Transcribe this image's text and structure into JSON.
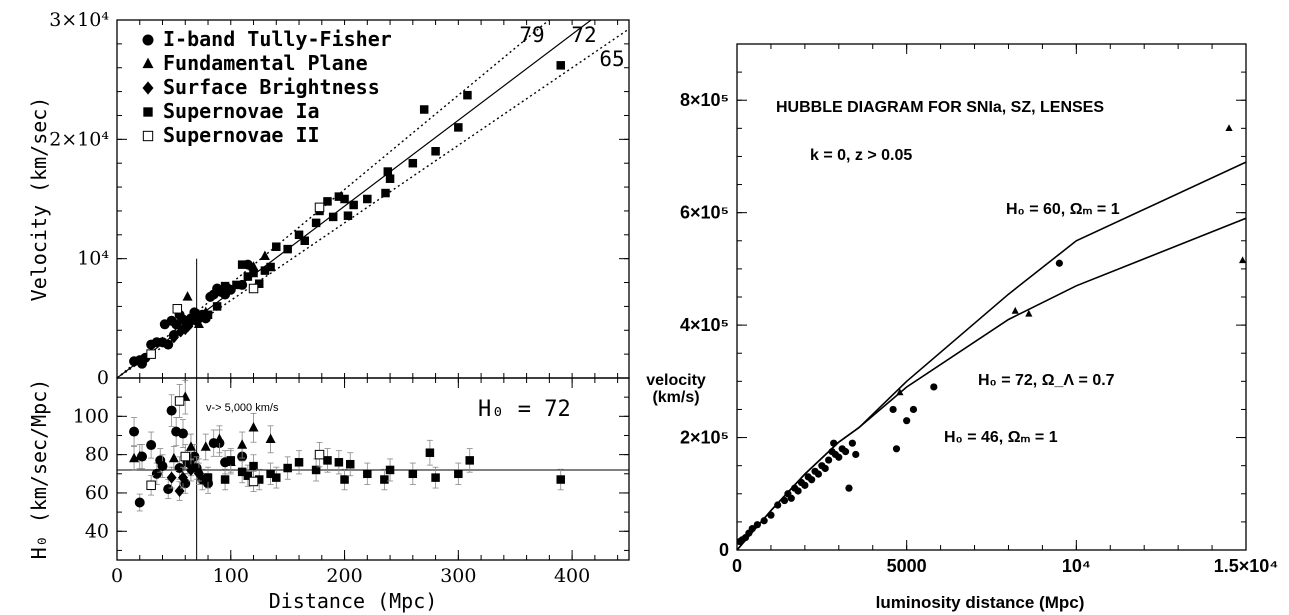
{
  "chart_data": [
    {
      "type": "scatter",
      "panel": "top-left",
      "xlabel": "",
      "ylabel": "Velocity (km/sec)",
      "xlim": [
        0,
        450
      ],
      "ylim": [
        0,
        30000
      ],
      "xticks": [],
      "yticks": [
        {
          "v": 0,
          "label": "0"
        },
        {
          "v": 10000,
          "label": "10⁴"
        },
        {
          "v": 20000,
          "label": "2×10⁴"
        },
        {
          "v": 30000,
          "label": "3×10⁴"
        }
      ],
      "legend": [
        {
          "marker": "circle",
          "label": "I-band Tully-Fisher"
        },
        {
          "marker": "triangle",
          "label": "Fundamental Plane"
        },
        {
          "marker": "diamond",
          "label": "Surface Brightness"
        },
        {
          "marker": "square",
          "label": "Supernovae Ia"
        },
        {
          "marker": "open-square",
          "label": "Supernovae II"
        }
      ],
      "lines": [
        {
          "label": "79",
          "slope": 79,
          "style": "dotted"
        },
        {
          "label": "72",
          "slope": 72,
          "style": "solid"
        },
        {
          "label": "65",
          "slope": 65,
          "style": "dotted"
        }
      ],
      "vline_x": 70,
      "series": [
        {
          "marker": "circle",
          "points": [
            [
              15,
              1400
            ],
            [
              20,
              1500
            ],
            [
              22,
              1200
            ],
            [
              25,
              1700
            ],
            [
              30,
              2800
            ],
            [
              35,
              3000
            ],
            [
              40,
              3000
            ],
            [
              42,
              4500
            ],
            [
              45,
              2800
            ],
            [
              48,
              4800
            ],
            [
              50,
              3600
            ],
            [
              52,
              4500
            ],
            [
              55,
              5300
            ],
            [
              58,
              4900
            ],
            [
              60,
              4200
            ],
            [
              62,
              4400
            ],
            [
              65,
              5000
            ],
            [
              68,
              5500
            ],
            [
              70,
              4800
            ],
            [
              72,
              5000
            ],
            [
              75,
              5300
            ],
            [
              78,
              5000
            ],
            [
              82,
              6800
            ],
            [
              85,
              7000
            ],
            [
              88,
              7500
            ],
            [
              92,
              7200
            ],
            [
              95,
              7000
            ],
            [
              100,
              7400
            ],
            [
              110,
              7800
            ],
            [
              115,
              9500
            ]
          ]
        },
        {
          "marker": "triangle",
          "points": [
            [
              40,
              3000
            ],
            [
              55,
              4800
            ],
            [
              62,
              6800
            ],
            [
              68,
              5000
            ],
            [
              72,
              4500
            ],
            [
              78,
              5500
            ],
            [
              120,
              9300
            ],
            [
              130,
              10200
            ]
          ]
        },
        {
          "marker": "diamond",
          "points": [
            [
              50,
              3400
            ],
            [
              56,
              3900
            ],
            [
              60,
              4100
            ],
            [
              65,
              4700
            ],
            [
              70,
              5100
            ]
          ]
        },
        {
          "marker": "square",
          "points": [
            [
              80,
              5300
            ],
            [
              88,
              6000
            ],
            [
              95,
              7700
            ],
            [
              105,
              7800
            ],
            [
              110,
              9500
            ],
            [
              115,
              8500
            ],
            [
              120,
              8800
            ],
            [
              125,
              7900
            ],
            [
              130,
              9000
            ],
            [
              135,
              9300
            ],
            [
              140,
              11000
            ],
            [
              150,
              10800
            ],
            [
              160,
              12000
            ],
            [
              165,
              11500
            ],
            [
              175,
              13000
            ],
            [
              178,
              14000
            ],
            [
              185,
              14800
            ],
            [
              190,
              13500
            ],
            [
              195,
              15200
            ],
            [
              200,
              15000
            ],
            [
              203,
              13600
            ],
            [
              208,
              14500
            ],
            [
              220,
              15000
            ],
            [
              236,
              15500
            ],
            [
              238,
              17300
            ],
            [
              240,
              16700
            ],
            [
              260,
              18000
            ],
            [
              270,
              22500
            ],
            [
              280,
              19000
            ],
            [
              300,
              21000
            ],
            [
              308,
              23700
            ],
            [
              390,
              26200
            ]
          ]
        },
        {
          "marker": "open-square",
          "points": [
            [
              30,
              2000
            ],
            [
              53,
              5800
            ],
            [
              120,
              7500
            ],
            [
              178,
              14300
            ]
          ]
        }
      ]
    },
    {
      "type": "scatter",
      "panel": "bottom-left",
      "xlabel": "Distance (Mpc)",
      "ylabel": "H₀ (km/sec/Mpc)",
      "xlim": [
        0,
        450
      ],
      "ylim": [
        25,
        120
      ],
      "xticks": [
        {
          "v": 0,
          "label": "0"
        },
        {
          "v": 100,
          "label": "100"
        },
        {
          "v": 200,
          "label": "200"
        },
        {
          "v": 300,
          "label": "300"
        },
        {
          "v": 400,
          "label": "400"
        }
      ],
      "yticks": [
        {
          "v": 40,
          "label": "40"
        },
        {
          "v": 60,
          "label": "60"
        },
        {
          "v": 80,
          "label": "80"
        },
        {
          "v": 100,
          "label": "100"
        }
      ],
      "annotation_small": "v-> 5,000 km/s",
      "annotation_h0": "H₀ = 72",
      "hline_y": 72,
      "vline_x": 70,
      "series": [
        {
          "marker": "circle",
          "points": [
            [
              15,
              92
            ],
            [
              20,
              55
            ],
            [
              22,
              79
            ],
            [
              30,
              85
            ],
            [
              35,
              70
            ],
            [
              38,
              77
            ],
            [
              40,
              74
            ],
            [
              45,
              62
            ],
            [
              48,
              103
            ],
            [
              52,
              92
            ],
            [
              55,
              73
            ],
            [
              58,
              91
            ],
            [
              60,
              65
            ],
            [
              62,
              76
            ],
            [
              65,
              75
            ],
            [
              68,
              79
            ],
            [
              70,
              73
            ],
            [
              75,
              67
            ],
            [
              80,
              65
            ],
            [
              85,
              86
            ],
            [
              90,
              86
            ],
            [
              95,
              76
            ],
            [
              110,
              79
            ]
          ]
        },
        {
          "marker": "triangle",
          "points": [
            [
              15,
              78
            ],
            [
              20,
              79
            ],
            [
              50,
              78
            ],
            [
              60,
              110
            ],
            [
              65,
              84
            ],
            [
              72,
              72
            ],
            [
              78,
              84
            ],
            [
              90,
              88
            ],
            [
              100,
              76
            ],
            [
              110,
              85
            ],
            [
              120,
              94
            ],
            [
              135,
              88
            ]
          ]
        },
        {
          "marker": "diamond",
          "points": [
            [
              48,
              68
            ],
            [
              55,
              61
            ],
            [
              58,
              68
            ],
            [
              65,
              72
            ],
            [
              72,
              70
            ]
          ]
        },
        {
          "marker": "square",
          "points": [
            [
              80,
              68
            ],
            [
              95,
              67
            ],
            [
              100,
              77
            ],
            [
              110,
              71
            ],
            [
              115,
              69
            ],
            [
              120,
              74
            ],
            [
              125,
              67
            ],
            [
              135,
              70
            ],
            [
              140,
              68
            ],
            [
              150,
              73
            ],
            [
              160,
              76
            ],
            [
              175,
              72
            ],
            [
              185,
              77
            ],
            [
              195,
              76
            ],
            [
              200,
              67
            ],
            [
              205,
              75
            ],
            [
              220,
              70
            ],
            [
              235,
              67
            ],
            [
              240,
              72
            ],
            [
              260,
              70
            ],
            [
              275,
              81
            ],
            [
              280,
              68
            ],
            [
              300,
              70
            ],
            [
              310,
              77
            ],
            [
              390,
              67
            ]
          ]
        },
        {
          "marker": "open-square",
          "points": [
            [
              30,
              64
            ],
            [
              55,
              108
            ],
            [
              60,
              79
            ],
            [
              120,
              66
            ],
            [
              178,
              80
            ]
          ]
        }
      ]
    },
    {
      "type": "scatter",
      "panel": "right",
      "title": "HUBBLE DIAGRAM FOR SNIa, SZ, LENSES",
      "subtitle": "k = 0, z > 0.05",
      "xlabel": "luminosity distance (Mpc)",
      "ylabel_line1": "velocity",
      "ylabel_line2": "(km/s)",
      "xlim": [
        0,
        15000
      ],
      "ylim": [
        0,
        900000
      ],
      "xticks": [
        {
          "v": 0,
          "label": "0"
        },
        {
          "v": 5000,
          "label": "5000"
        },
        {
          "v": 10000,
          "label": "10⁴"
        },
        {
          "v": 15000,
          "label": "1.5×10⁴"
        }
      ],
      "yticks": [
        {
          "v": 0,
          "label": "0"
        },
        {
          "v": 200000,
          "label": "2×10⁵"
        },
        {
          "v": 400000,
          "label": "4×10⁵"
        },
        {
          "v": 600000,
          "label": "6×10⁵"
        },
        {
          "v": 800000,
          "label": "8×10⁵"
        }
      ],
      "model_labels": [
        "H₀ = 60, Ωₘ = 1",
        "H₀ = 72, Ω_Λ = 0.7",
        "H₀ = 46, Ωₘ = 1"
      ],
      "curves": [
        {
          "points": [
            [
              0,
              0
            ],
            [
              1000,
              70000
            ],
            [
              2000,
              135000
            ],
            [
              3000,
              192000
            ],
            [
              3600,
              218000
            ],
            [
              5000,
              300000
            ],
            [
              8000,
              455000
            ],
            [
              10000,
              550000
            ],
            [
              15000,
              690000
            ]
          ]
        },
        {
          "points": [
            [
              0,
              0
            ],
            [
              1000,
              70000
            ],
            [
              2000,
              135000
            ],
            [
              3000,
              192000
            ],
            [
              3600,
              218000
            ],
            [
              5000,
              290000
            ],
            [
              8000,
              410000
            ],
            [
              10000,
              470000
            ],
            [
              15000,
              590000
            ]
          ]
        }
      ],
      "series": [
        {
          "marker": "circle",
          "points": [
            [
              80,
              15000
            ],
            [
              150,
              18000
            ],
            [
              250,
              22000
            ],
            [
              350,
              30000
            ],
            [
              450,
              38000
            ],
            [
              600,
              45000
            ],
            [
              800,
              52000
            ],
            [
              1000,
              62000
            ],
            [
              1200,
              80000
            ],
            [
              1400,
              88000
            ],
            [
              1500,
              100000
            ],
            [
              1600,
              92000
            ],
            [
              1700,
              110000
            ],
            [
              1800,
              105000
            ],
            [
              1900,
              120000
            ],
            [
              2000,
              115000
            ],
            [
              2100,
              130000
            ],
            [
              2200,
              125000
            ],
            [
              2300,
              140000
            ],
            [
              2400,
              135000
            ],
            [
              2500,
              150000
            ],
            [
              2600,
              145000
            ],
            [
              2700,
              160000
            ],
            [
              2800,
              175000
            ],
            [
              2850,
              190000
            ],
            [
              2900,
              170000
            ],
            [
              3000,
              165000
            ],
            [
              3100,
              180000
            ],
            [
              3200,
              175000
            ],
            [
              3300,
              110000
            ],
            [
              3400,
              190000
            ],
            [
              3500,
              170000
            ],
            [
              4600,
              250000
            ],
            [
              4700,
              180000
            ],
            [
              5000,
              230000
            ],
            [
              5200,
              250000
            ],
            [
              5800,
              290000
            ],
            [
              9500,
              510000
            ]
          ]
        },
        {
          "marker": "triangle",
          "points": [
            [
              4800,
              280000
            ],
            [
              8200,
              425000
            ],
            [
              8600,
              420000
            ],
            [
              14500,
              750000
            ],
            [
              14900,
              515000
            ]
          ]
        }
      ]
    }
  ]
}
